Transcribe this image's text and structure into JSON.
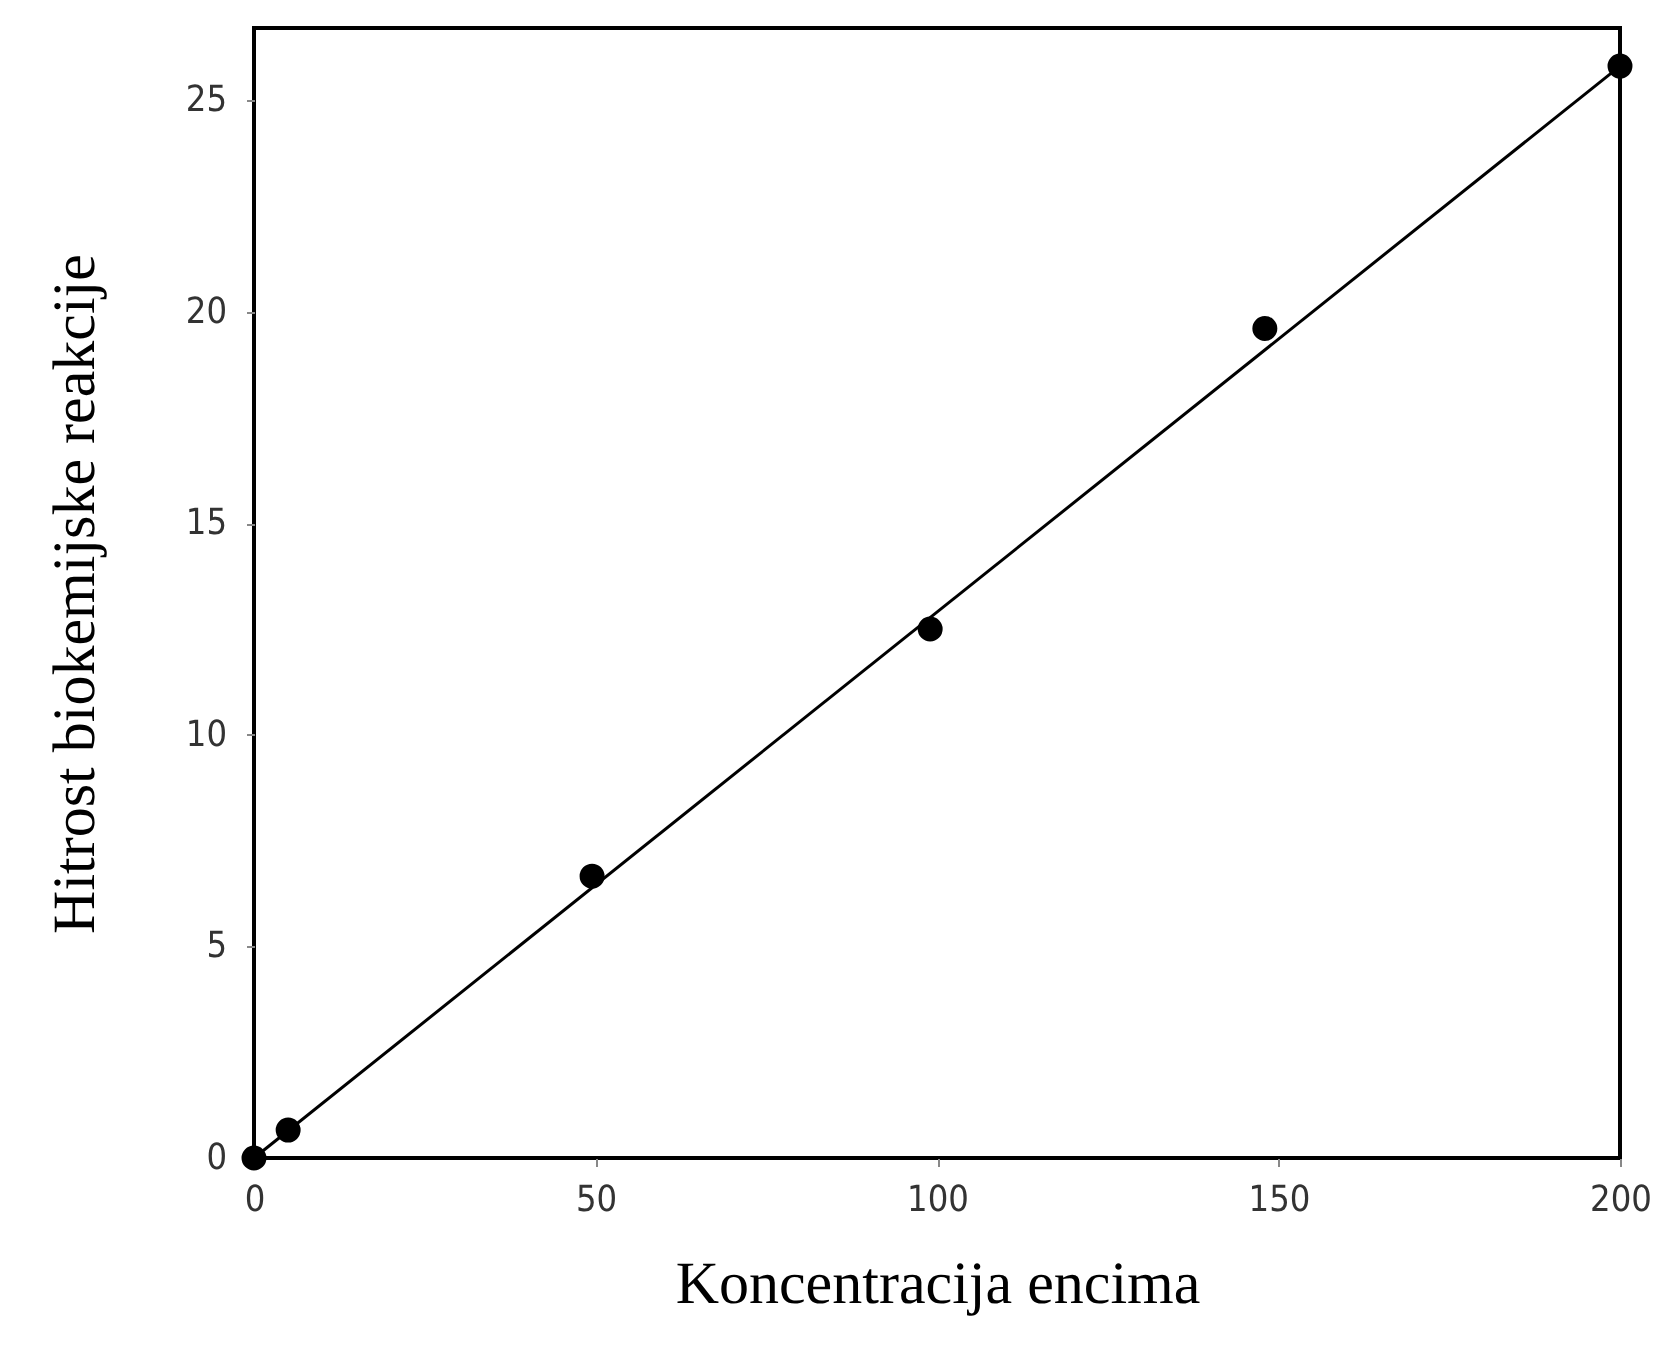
{
  "chart_data": {
    "type": "scatter",
    "xlabel": "Koncentracija encima",
    "ylabel": "Hitrost biokemijske reakcije",
    "xlim": [
      0,
      200
    ],
    "ylim": [
      0,
      26.7
    ],
    "xticks": [
      0,
      50,
      100,
      150,
      200
    ],
    "yticks": [
      0,
      5,
      10,
      15,
      20,
      25
    ],
    "grid": false,
    "series": [
      {
        "marker": "circle",
        "color": "#000000",
        "x": [
          0,
          5,
          49.5,
          99,
          148,
          200
        ],
        "values": [
          0,
          0.66,
          6.66,
          12.5,
          19.6,
          25.8
        ]
      },
      {
        "type": "line",
        "marker": "none",
        "color": "#000000",
        "x": [
          0,
          200
        ],
        "values": [
          0,
          25.8
        ]
      }
    ]
  }
}
